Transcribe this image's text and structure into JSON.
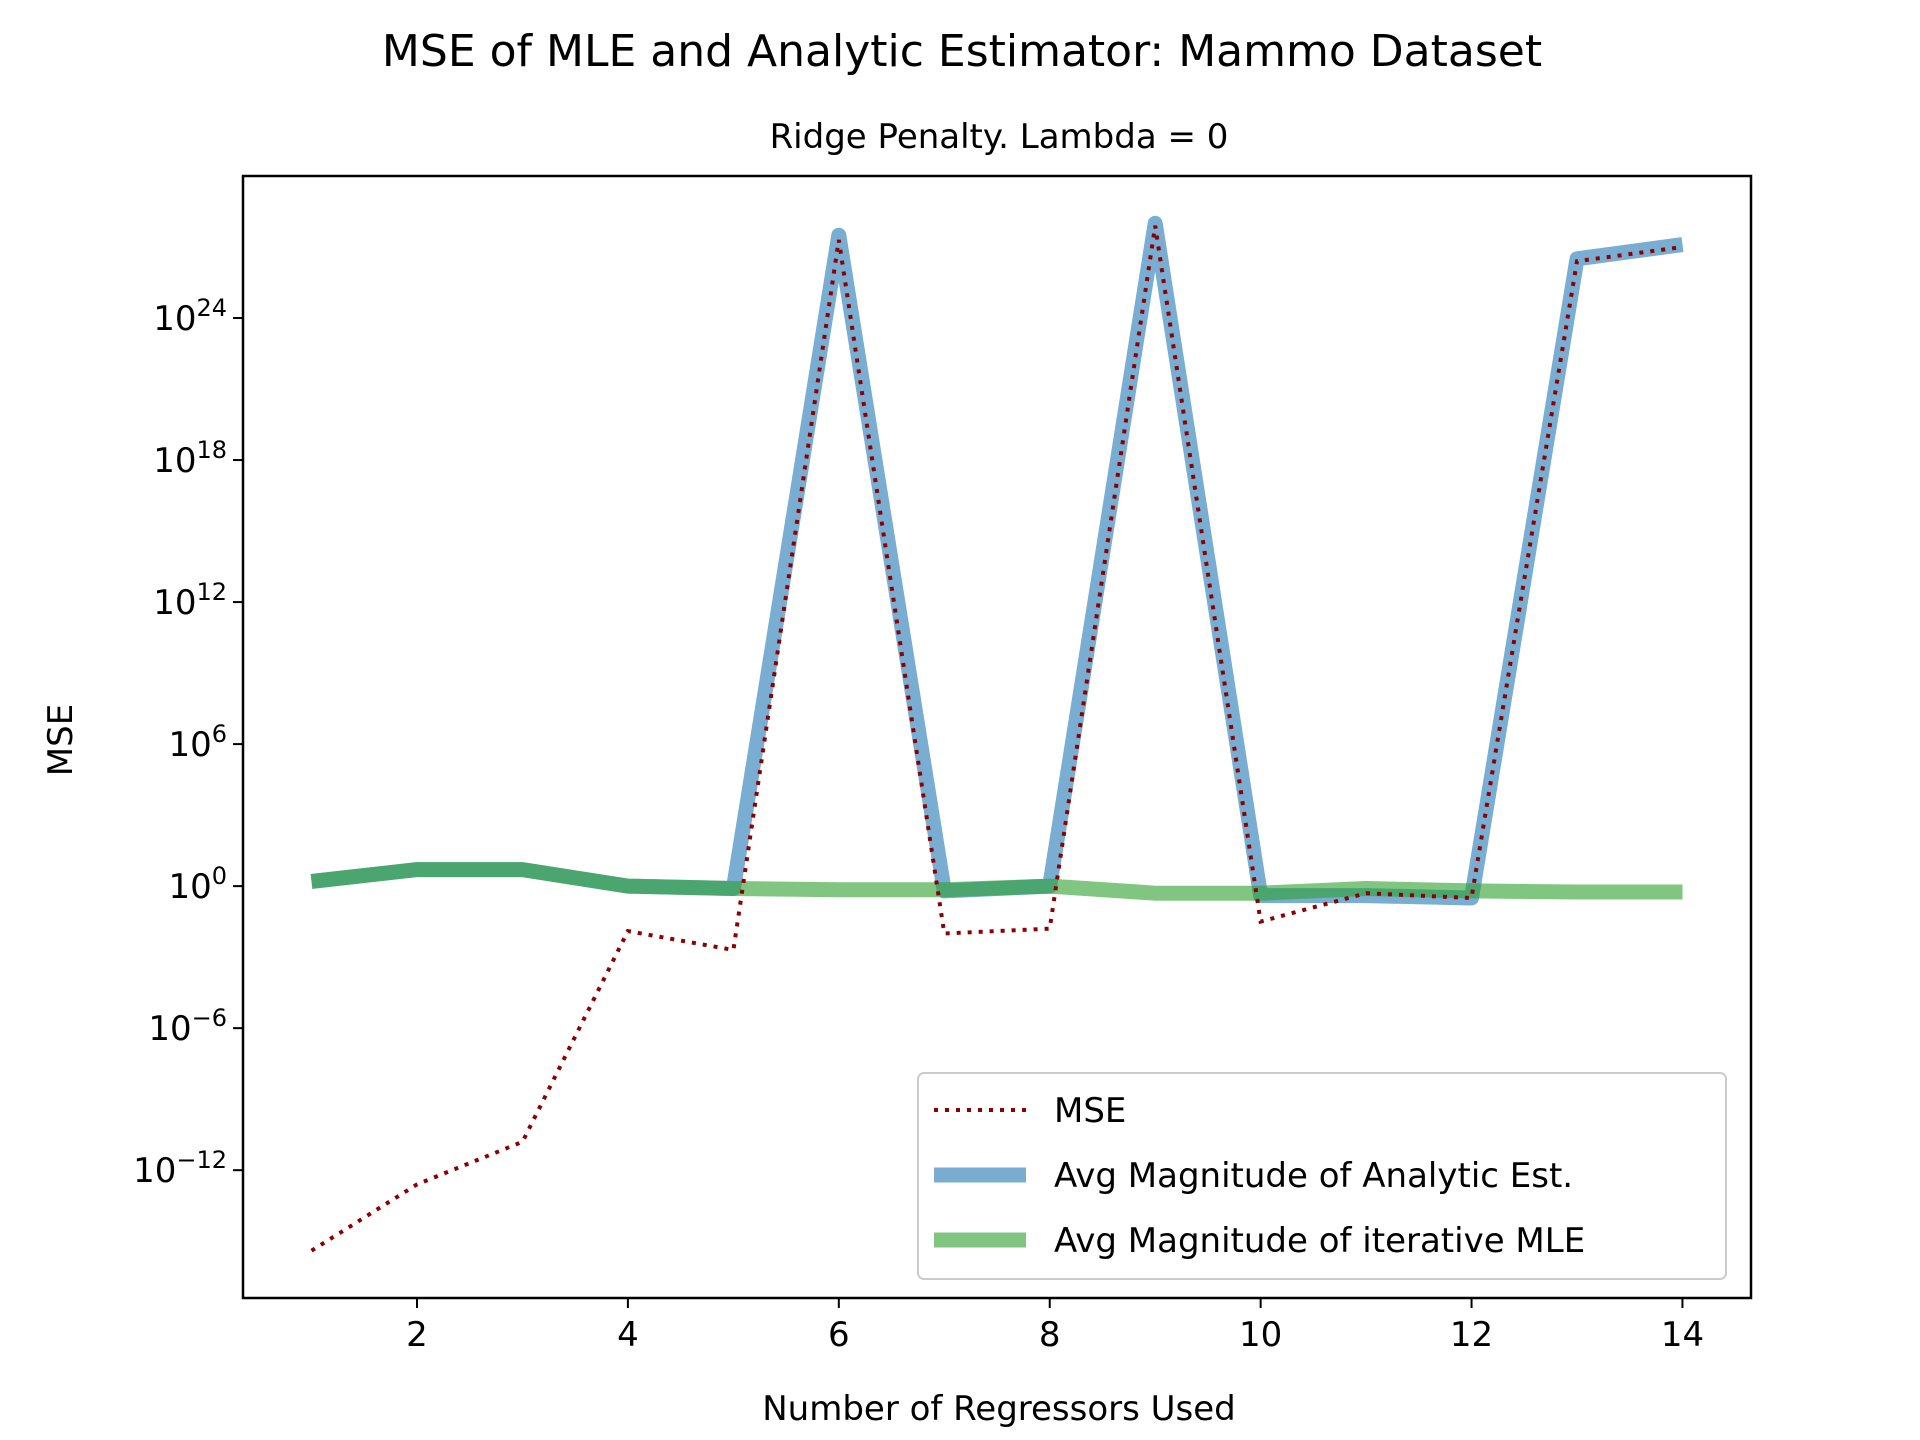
{
  "chart_data": {
    "type": "line",
    "title": "MSE of MLE and Analytic Estimator: Mammo Dataset",
    "subtitle": "Ridge Penalty. Lambda = 0",
    "xlabel": "Number of Regressors Used",
    "ylabel": "MSE",
    "x": [
      1,
      2,
      3,
      4,
      5,
      6,
      7,
      8,
      9,
      10,
      11,
      12,
      13,
      14
    ],
    "xlim": [
      0.35,
      14.65
    ],
    "xticks": [
      2,
      4,
      6,
      8,
      10,
      12,
      14
    ],
    "yscale": "log",
    "ylim_log10": [
      -17.4,
      30
    ],
    "yticks": [
      {
        "exp": 24,
        "label": "10",
        "sup": "24"
      },
      {
        "exp": 18,
        "label": "10",
        "sup": "18"
      },
      {
        "exp": 12,
        "label": "10",
        "sup": "12"
      },
      {
        "exp": 6,
        "label": "10",
        "sup": "6"
      },
      {
        "exp": 0,
        "label": "10",
        "sup": "0"
      },
      {
        "exp": -6,
        "label": "10",
        "sup": "−6"
      },
      {
        "exp": -12,
        "label": "10",
        "sup": "−12"
      }
    ],
    "series_log10": [
      {
        "name": "MSE",
        "color": "#8b0000",
        "style": "dotted",
        "values": [
          -15.4,
          -12.6,
          -10.8,
          -1.9,
          -2.7,
          27.3,
          -2.0,
          -1.8,
          27.9,
          -1.5,
          -0.3,
          -0.5,
          26.4,
          27.0
        ]
      },
      {
        "name": "Avg Magnitude of Analytic Est.",
        "color": "#1f77b4",
        "style": "solid-wide",
        "values": [
          0.2,
          0.7,
          0.7,
          0.0,
          -0.1,
          27.5,
          -0.2,
          0.0,
          28.0,
          -0.4,
          -0.4,
          -0.5,
          26.5,
          27.1
        ]
      },
      {
        "name": "Avg Magnitude of iterative MLE",
        "color": "#2ca02c",
        "style": "solid-wide",
        "values": [
          0.2,
          0.7,
          0.7,
          0.0,
          -0.1,
          -0.15,
          -0.15,
          0.0,
          -0.3,
          -0.3,
          -0.1,
          -0.2,
          -0.25,
          -0.25
        ]
      }
    ],
    "legend_position": "lower-right"
  }
}
